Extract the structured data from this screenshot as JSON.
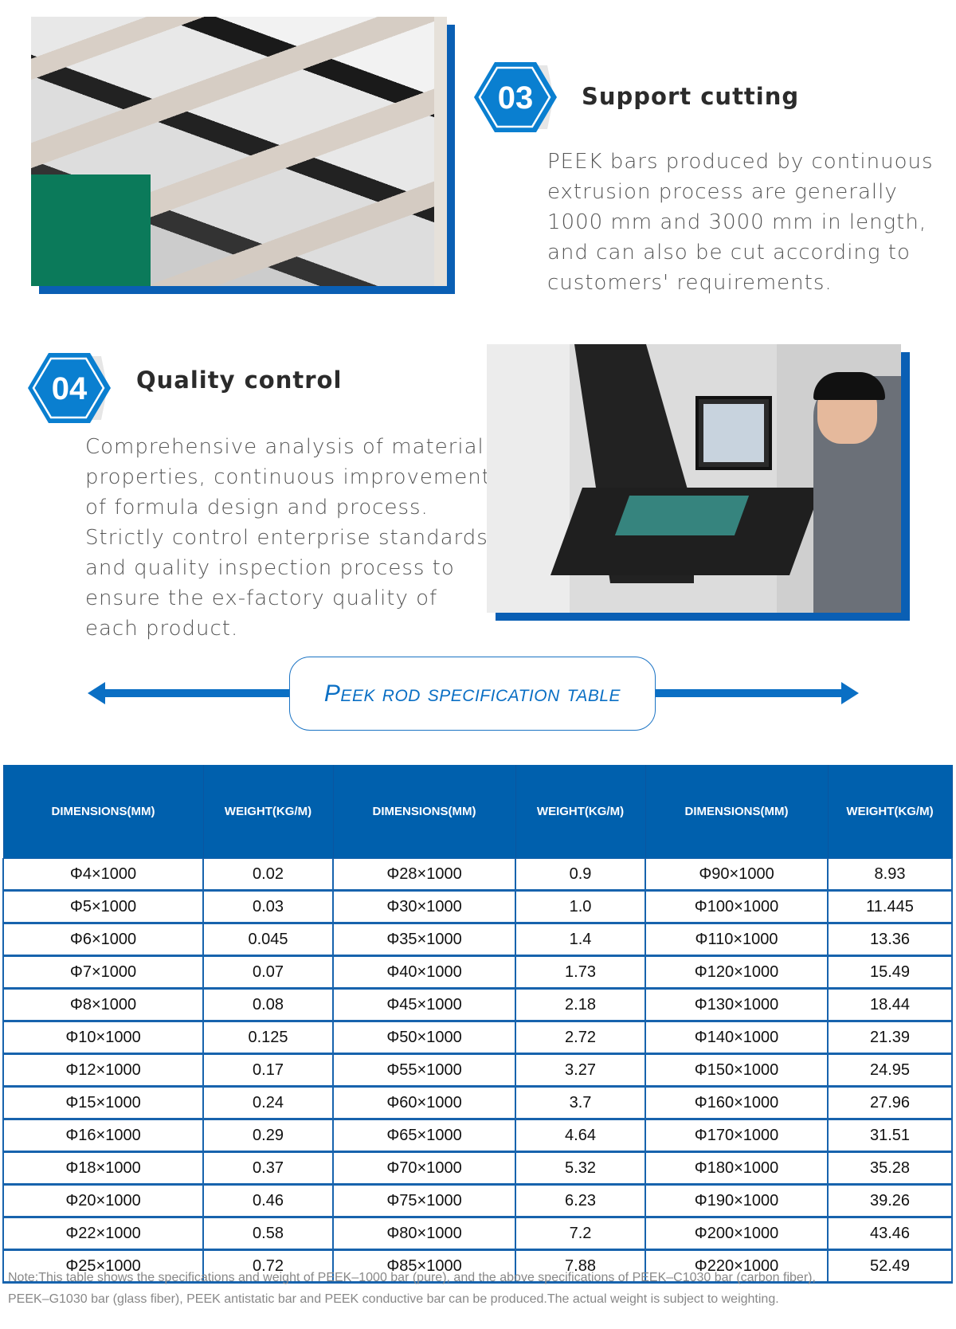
{
  "accent_color": "#0a7fd0",
  "header_color": "#0060ad",
  "feature3": {
    "number": "03",
    "title": "Support cutting",
    "text_lines": [
      "PEEK bars produced by continuous",
      "extrusion process are generally",
      "1000 mm and 3000 mm in length,",
      "and can also be cut according to",
      "customers' requirements."
    ]
  },
  "feature4": {
    "number": "04",
    "title": "Quality control",
    "text_lines": [
      "Comprehensive analysis of material",
      "properties, continuous improvement",
      "of formula design and process.",
      "Strictly control enterprise standards",
      "and quality inspection process to",
      "ensure the ex-factory quality of",
      "each product."
    ]
  },
  "table_title": "Peek rod specification table",
  "table": {
    "headers": [
      "DIMENSIONS(MM)",
      "WEIGHT(KG/M)",
      "DIMENSIONS(MM)",
      "WEIGHT(KG/M)",
      "DIMENSIONS(MM)",
      "WEIGHT(KG/M)"
    ],
    "rows": [
      [
        "Φ4×1000",
        "0.02",
        "Φ28×1000",
        "0.9",
        "Φ90×1000",
        "8.93"
      ],
      [
        "Φ5×1000",
        "0.03",
        "Φ30×1000",
        "1.0",
        "Φ100×1000",
        "11.445"
      ],
      [
        "Φ6×1000",
        "0.045",
        "Φ35×1000",
        "1.4",
        "Φ110×1000",
        "13.36"
      ],
      [
        "Φ7×1000",
        "0.07",
        "Φ40×1000",
        "1.73",
        "Φ120×1000",
        "15.49"
      ],
      [
        "Φ8×1000",
        "0.08",
        "Φ45×1000",
        "2.18",
        "Φ130×1000",
        "18.44"
      ],
      [
        "Φ10×1000",
        "0.125",
        "Φ50×1000",
        "2.72",
        "Φ140×1000",
        "21.39"
      ],
      [
        "Φ12×1000",
        "0.17",
        "Φ55×1000",
        "3.27",
        "Φ150×1000",
        "24.95"
      ],
      [
        "Φ15×1000",
        "0.24",
        "Φ60×1000",
        "3.7",
        "Φ160×1000",
        "27.96"
      ],
      [
        "Φ16×1000",
        "0.29",
        "Φ65×1000",
        "4.64",
        "Φ170×1000",
        "31.51"
      ],
      [
        "Φ18×1000",
        "0.37",
        "Φ70×1000",
        "5.32",
        "Φ180×1000",
        "35.28"
      ],
      [
        "Φ20×1000",
        "0.46",
        "Φ75×1000",
        "6.23",
        "Φ190×1000",
        "39.26"
      ],
      [
        "Φ22×1000",
        "0.58",
        "Φ80×1000",
        "7.2",
        "Φ200×1000",
        "43.46"
      ],
      [
        "Φ25×1000",
        "0.72",
        "Φ85×1000",
        "7.88",
        "Φ220×1000",
        "52.49"
      ]
    ]
  },
  "note_lines": [
    "Note:This table shows the specifications and weight of PEEK–1000 bar (pure), and the above specifications of PEEK–C1030 bar (carbon fiber),",
    "PEEK–G1030 bar (glass fiber), PEEK antistatic bar and PEEK conductive bar can be produced.The actual weight is subject to weighting."
  ]
}
